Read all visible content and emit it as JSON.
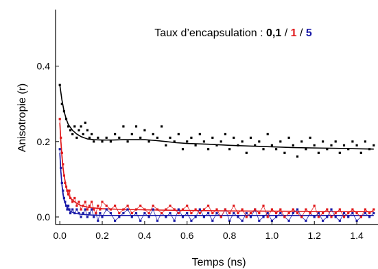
{
  "chart_data": {
    "type": "scatter",
    "title": "",
    "annotation": {
      "prefix": "Taux d’encapsulation : ",
      "levels": [
        {
          "text": "0,1",
          "color": "#000000"
        },
        {
          "text": "1",
          "color": "#e0191b"
        },
        {
          "text": "5",
          "color": "#1a1aa8"
        }
      ],
      "separator": " / "
    },
    "xlabel": "Temps (ns)",
    "ylabel": "Anisotropie (r)",
    "xlim": [
      -0.02,
      1.5
    ],
    "ylim": [
      -0.02,
      0.55
    ],
    "xticks": [
      {
        "value": 0.0,
        "label": "0.0"
      },
      {
        "value": 0.2,
        "label": "0.2"
      },
      {
        "value": 0.4,
        "label": "0.4"
      },
      {
        "value": 0.6,
        "label": "0.6"
      },
      {
        "value": 0.8,
        "label": "0.8"
      },
      {
        "value": 1.0,
        "label": "1.0"
      },
      {
        "value": 1.2,
        "label": "1.2"
      },
      {
        "value": 1.4,
        "label": "1.4"
      }
    ],
    "yticks": [
      {
        "value": 0.0,
        "label": "0.0"
      },
      {
        "value": 0.2,
        "label": "0.2"
      },
      {
        "value": 0.4,
        "label": "0.4"
      }
    ],
    "grid": false,
    "series": [
      {
        "color": "#000000",
        "x": [
          0.0,
          0.01,
          0.02,
          0.03,
          0.04,
          0.05,
          0.06,
          0.07,
          0.08,
          0.09,
          0.1,
          0.11,
          0.12,
          0.13,
          0.14,
          0.15,
          0.16,
          0.18,
          0.2,
          0.22,
          0.24,
          0.26,
          0.28,
          0.3,
          0.32,
          0.34,
          0.36,
          0.38,
          0.4,
          0.42,
          0.44,
          0.46,
          0.48,
          0.5,
          0.52,
          0.54,
          0.56,
          0.58,
          0.6,
          0.62,
          0.64,
          0.66,
          0.68,
          0.7,
          0.72,
          0.74,
          0.76,
          0.78,
          0.8,
          0.82,
          0.84,
          0.86,
          0.88,
          0.9,
          0.92,
          0.94,
          0.96,
          0.98,
          1.0,
          1.02,
          1.04,
          1.06,
          1.08,
          1.1,
          1.12,
          1.14,
          1.16,
          1.18,
          1.2,
          1.22,
          1.24,
          1.26,
          1.28,
          1.3,
          1.32,
          1.34,
          1.36,
          1.38,
          1.4,
          1.42,
          1.44,
          1.46,
          1.48
        ],
        "y": [
          0.35,
          0.3,
          0.28,
          0.26,
          0.24,
          0.23,
          0.22,
          0.24,
          0.21,
          0.23,
          0.24,
          0.22,
          0.25,
          0.23,
          0.21,
          0.22,
          0.2,
          0.21,
          0.2,
          0.21,
          0.2,
          0.22,
          0.21,
          0.24,
          0.2,
          0.22,
          0.24,
          0.21,
          0.23,
          0.2,
          0.22,
          0.21,
          0.24,
          0.19,
          0.21,
          0.2,
          0.22,
          0.18,
          0.2,
          0.21,
          0.19,
          0.22,
          0.2,
          0.18,
          0.21,
          0.19,
          0.2,
          0.22,
          0.18,
          0.21,
          0.19,
          0.2,
          0.17,
          0.21,
          0.19,
          0.2,
          0.18,
          0.22,
          0.19,
          0.18,
          0.2,
          0.17,
          0.21,
          0.19,
          0.16,
          0.2,
          0.18,
          0.21,
          0.19,
          0.17,
          0.2,
          0.18,
          0.19,
          0.2,
          0.17,
          0.19,
          0.18,
          0.2,
          0.19,
          0.17,
          0.2,
          0.18,
          0.19
        ]
      },
      {
        "color": "#e0191b",
        "x": [
          0.0,
          0.005,
          0.01,
          0.015,
          0.02,
          0.025,
          0.03,
          0.035,
          0.04,
          0.045,
          0.05,
          0.06,
          0.07,
          0.08,
          0.09,
          0.1,
          0.11,
          0.12,
          0.13,
          0.14,
          0.15,
          0.16,
          0.17,
          0.18,
          0.19,
          0.2,
          0.22,
          0.24,
          0.26,
          0.28,
          0.3,
          0.32,
          0.34,
          0.36,
          0.38,
          0.4,
          0.42,
          0.44,
          0.46,
          0.48,
          0.5,
          0.52,
          0.54,
          0.56,
          0.58,
          0.6,
          0.62,
          0.64,
          0.66,
          0.68,
          0.7,
          0.72,
          0.74,
          0.76,
          0.78,
          0.8,
          0.82,
          0.84,
          0.86,
          0.88,
          0.9,
          0.92,
          0.94,
          0.96,
          0.98,
          1.0,
          1.02,
          1.04,
          1.06,
          1.08,
          1.1,
          1.12,
          1.14,
          1.16,
          1.18,
          1.2,
          1.22,
          1.24,
          1.26,
          1.28,
          1.3,
          1.32,
          1.34,
          1.36,
          1.38,
          1.4,
          1.42,
          1.44,
          1.46,
          1.48
        ],
        "y": [
          0.26,
          0.21,
          0.17,
          0.14,
          0.11,
          0.09,
          0.08,
          0.07,
          0.06,
          0.07,
          0.05,
          0.04,
          0.05,
          0.03,
          0.04,
          0.02,
          0.03,
          0.04,
          0.02,
          0.03,
          0.04,
          0.02,
          0.01,
          0.03,
          0.02,
          0.04,
          0.03,
          0.02,
          0.03,
          0.01,
          0.02,
          0.03,
          0.01,
          0.02,
          0.03,
          0.02,
          0.01,
          0.03,
          0.02,
          0.01,
          0.02,
          0.03,
          0.02,
          0.01,
          0.02,
          0.03,
          0.01,
          0.02,
          0.01,
          0.02,
          0.03,
          0.01,
          0.02,
          0.0,
          0.02,
          0.01,
          0.03,
          0.01,
          0.02,
          0.0,
          0.01,
          0.02,
          0.01,
          0.03,
          0.0,
          0.02,
          0.01,
          0.02,
          0.0,
          0.01,
          0.02,
          0.01,
          0.0,
          0.02,
          0.01,
          0.03,
          0.0,
          0.01,
          0.02,
          0.0,
          0.01,
          0.02,
          0.0,
          0.01,
          0.02,
          0.01,
          0.0,
          0.02,
          0.01,
          0.02
        ]
      },
      {
        "color": "#1a1aa8",
        "x": [
          0.0,
          0.005,
          0.01,
          0.015,
          0.02,
          0.025,
          0.03,
          0.035,
          0.04,
          0.045,
          0.05,
          0.06,
          0.07,
          0.08,
          0.09,
          0.1,
          0.11,
          0.12,
          0.13,
          0.14,
          0.15,
          0.16,
          0.17,
          0.18,
          0.19,
          0.2,
          0.22,
          0.24,
          0.26,
          0.28,
          0.3,
          0.32,
          0.34,
          0.36,
          0.38,
          0.4,
          0.42,
          0.44,
          0.46,
          0.48,
          0.5,
          0.52,
          0.54,
          0.56,
          0.58,
          0.6,
          0.62,
          0.64,
          0.66,
          0.68,
          0.7,
          0.72,
          0.74,
          0.76,
          0.78,
          0.8,
          0.82,
          0.84,
          0.86,
          0.88,
          0.9,
          0.92,
          0.94,
          0.96,
          0.98,
          1.0,
          1.02,
          1.04,
          1.06,
          1.08,
          1.1,
          1.12,
          1.14,
          1.16,
          1.18,
          1.2,
          1.22,
          1.24,
          1.26,
          1.28,
          1.3,
          1.32,
          1.34,
          1.36,
          1.38,
          1.4,
          1.42,
          1.44,
          1.46,
          1.48
        ],
        "y": [
          0.18,
          0.13,
          0.09,
          0.07,
          0.05,
          0.04,
          0.03,
          0.02,
          0.03,
          0.02,
          0.01,
          0.02,
          0.01,
          0.02,
          0.01,
          0.0,
          0.01,
          0.02,
          0.0,
          0.01,
          0.02,
          0.0,
          0.01,
          -0.01,
          0.01,
          0.0,
          0.02,
          0.01,
          -0.01,
          0.0,
          0.01,
          0.02,
          0.0,
          0.01,
          -0.01,
          0.01,
          0.0,
          0.02,
          -0.01,
          0.01,
          0.0,
          0.01,
          -0.01,
          0.02,
          0.0,
          0.01,
          -0.01,
          0.0,
          0.02,
          0.0,
          0.01,
          -0.01,
          0.01,
          0.0,
          0.02,
          -0.01,
          0.01,
          0.0,
          -0.01,
          0.01,
          0.0,
          0.02,
          -0.01,
          0.0,
          0.01,
          -0.01,
          0.0,
          0.01,
          0.0,
          -0.01,
          0.01,
          0.02,
          0.0,
          -0.01,
          0.01,
          0.0,
          0.01,
          -0.01,
          0.0,
          0.02,
          0.0,
          -0.01,
          0.01,
          0.0,
          0.01,
          -0.01,
          0.0,
          0.01,
          0.0,
          0.01
        ]
      }
    ],
    "fits": [
      {
        "color": "#000000",
        "x": [
          0.0,
          0.01,
          0.02,
          0.03,
          0.04,
          0.06,
          0.08,
          0.1,
          0.13,
          0.16,
          0.2,
          0.25,
          0.3,
          0.35,
          0.4,
          0.45,
          0.5,
          0.55,
          0.6,
          0.7,
          0.8,
          0.9,
          1.0,
          1.1,
          1.2,
          1.3,
          1.4,
          1.48
        ],
        "y": [
          0.35,
          0.31,
          0.28,
          0.26,
          0.245,
          0.23,
          0.22,
          0.213,
          0.207,
          0.205,
          0.204,
          0.204,
          0.205,
          0.205,
          0.205,
          0.203,
          0.2,
          0.197,
          0.195,
          0.193,
          0.19,
          0.188,
          0.186,
          0.184,
          0.183,
          0.182,
          0.181,
          0.18
        ]
      },
      {
        "color": "#e0191b",
        "x": [
          0.0,
          0.005,
          0.01,
          0.015,
          0.02,
          0.03,
          0.04,
          0.05,
          0.07,
          0.1,
          0.14,
          0.2,
          0.3,
          0.5,
          0.8,
          1.1,
          1.48
        ],
        "y": [
          0.25,
          0.2,
          0.16,
          0.13,
          0.11,
          0.08,
          0.06,
          0.05,
          0.04,
          0.03,
          0.025,
          0.022,
          0.02,
          0.018,
          0.016,
          0.015,
          0.014
        ]
      },
      {
        "color": "#1a1aa8",
        "x": [
          0.0,
          0.005,
          0.01,
          0.015,
          0.02,
          0.03,
          0.04,
          0.05,
          0.07,
          0.1,
          0.15,
          0.2,
          0.3,
          0.5,
          0.8,
          1.1,
          1.48
        ],
        "y": [
          0.17,
          0.12,
          0.085,
          0.06,
          0.045,
          0.03,
          0.02,
          0.015,
          0.01,
          0.007,
          0.005,
          0.004,
          0.004,
          0.004,
          0.004,
          0.004,
          0.004
        ]
      }
    ]
  }
}
